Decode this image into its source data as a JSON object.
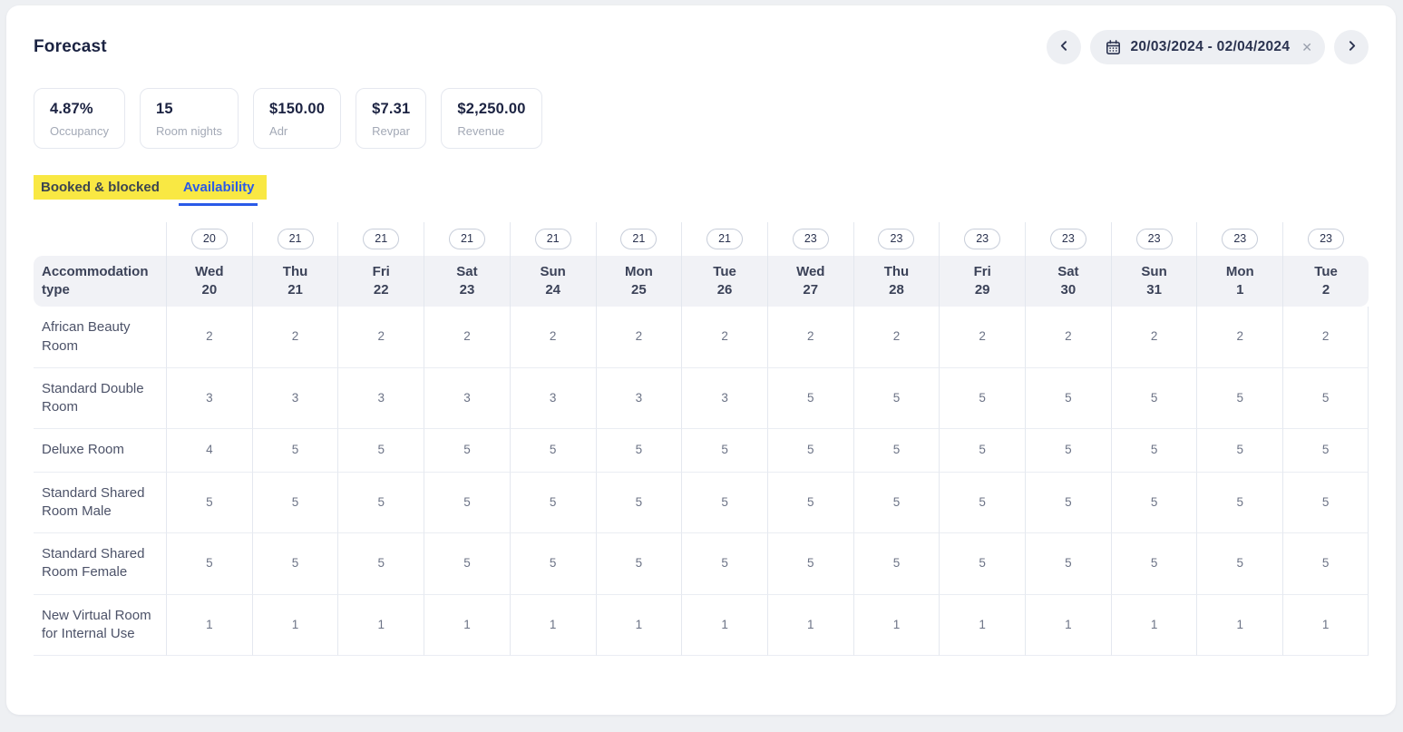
{
  "page": {
    "title": "Forecast"
  },
  "date_nav": {
    "range": "20/03/2024 - 02/04/2024",
    "clear_label": "✕"
  },
  "stats": [
    {
      "value": "4.87%",
      "label": "Occupancy"
    },
    {
      "value": "15",
      "label": "Room nights"
    },
    {
      "value": "$150.00",
      "label": "Adr"
    },
    {
      "value": "$7.31",
      "label": "Revpar"
    },
    {
      "value": "$2,250.00",
      "label": "Revenue"
    }
  ],
  "tabs": [
    {
      "id": "booked-blocked",
      "label": "Booked & blocked",
      "active": false
    },
    {
      "id": "availability",
      "label": "Availability",
      "active": true
    }
  ],
  "table": {
    "row_header": "Accommodation type",
    "columns": [
      {
        "capacity": "20",
        "day": "Wed",
        "date": "20"
      },
      {
        "capacity": "21",
        "day": "Thu",
        "date": "21"
      },
      {
        "capacity": "21",
        "day": "Fri",
        "date": "22"
      },
      {
        "capacity": "21",
        "day": "Sat",
        "date": "23"
      },
      {
        "capacity": "21",
        "day": "Sun",
        "date": "24"
      },
      {
        "capacity": "21",
        "day": "Mon",
        "date": "25"
      },
      {
        "capacity": "21",
        "day": "Tue",
        "date": "26"
      },
      {
        "capacity": "23",
        "day": "Wed",
        "date": "27"
      },
      {
        "capacity": "23",
        "day": "Thu",
        "date": "28"
      },
      {
        "capacity": "23",
        "day": "Fri",
        "date": "29"
      },
      {
        "capacity": "23",
        "day": "Sat",
        "date": "30"
      },
      {
        "capacity": "23",
        "day": "Sun",
        "date": "31"
      },
      {
        "capacity": "23",
        "day": "Mon",
        "date": "1"
      },
      {
        "capacity": "23",
        "day": "Tue",
        "date": "2"
      }
    ],
    "rows": [
      {
        "label": "African Beauty Room",
        "values": [
          "2",
          "2",
          "2",
          "2",
          "2",
          "2",
          "2",
          "2",
          "2",
          "2",
          "2",
          "2",
          "2",
          "2"
        ]
      },
      {
        "label": "Standard Double Room",
        "values": [
          "3",
          "3",
          "3",
          "3",
          "3",
          "3",
          "3",
          "5",
          "5",
          "5",
          "5",
          "5",
          "5",
          "5"
        ]
      },
      {
        "label": "Deluxe Room",
        "values": [
          "4",
          "5",
          "5",
          "5",
          "5",
          "5",
          "5",
          "5",
          "5",
          "5",
          "5",
          "5",
          "5",
          "5"
        ]
      },
      {
        "label": "Standard Shared Room Male",
        "values": [
          "5",
          "5",
          "5",
          "5",
          "5",
          "5",
          "5",
          "5",
          "5",
          "5",
          "5",
          "5",
          "5",
          "5"
        ]
      },
      {
        "label": "Standard Shared Room Female",
        "values": [
          "5",
          "5",
          "5",
          "5",
          "5",
          "5",
          "5",
          "5",
          "5",
          "5",
          "5",
          "5",
          "5",
          "5"
        ]
      },
      {
        "label": "New Virtual Room for Internal Use",
        "values": [
          "1",
          "1",
          "1",
          "1",
          "1",
          "1",
          "1",
          "1",
          "1",
          "1",
          "1",
          "1",
          "1",
          "1"
        ]
      }
    ]
  },
  "colors": {
    "accent_blue": "#2a5ae8",
    "highlight_yellow": "#f9e843",
    "header_bg": "#f1f2f6",
    "page_bg": "#eef0f3",
    "dark_navy": "#1c2342"
  }
}
